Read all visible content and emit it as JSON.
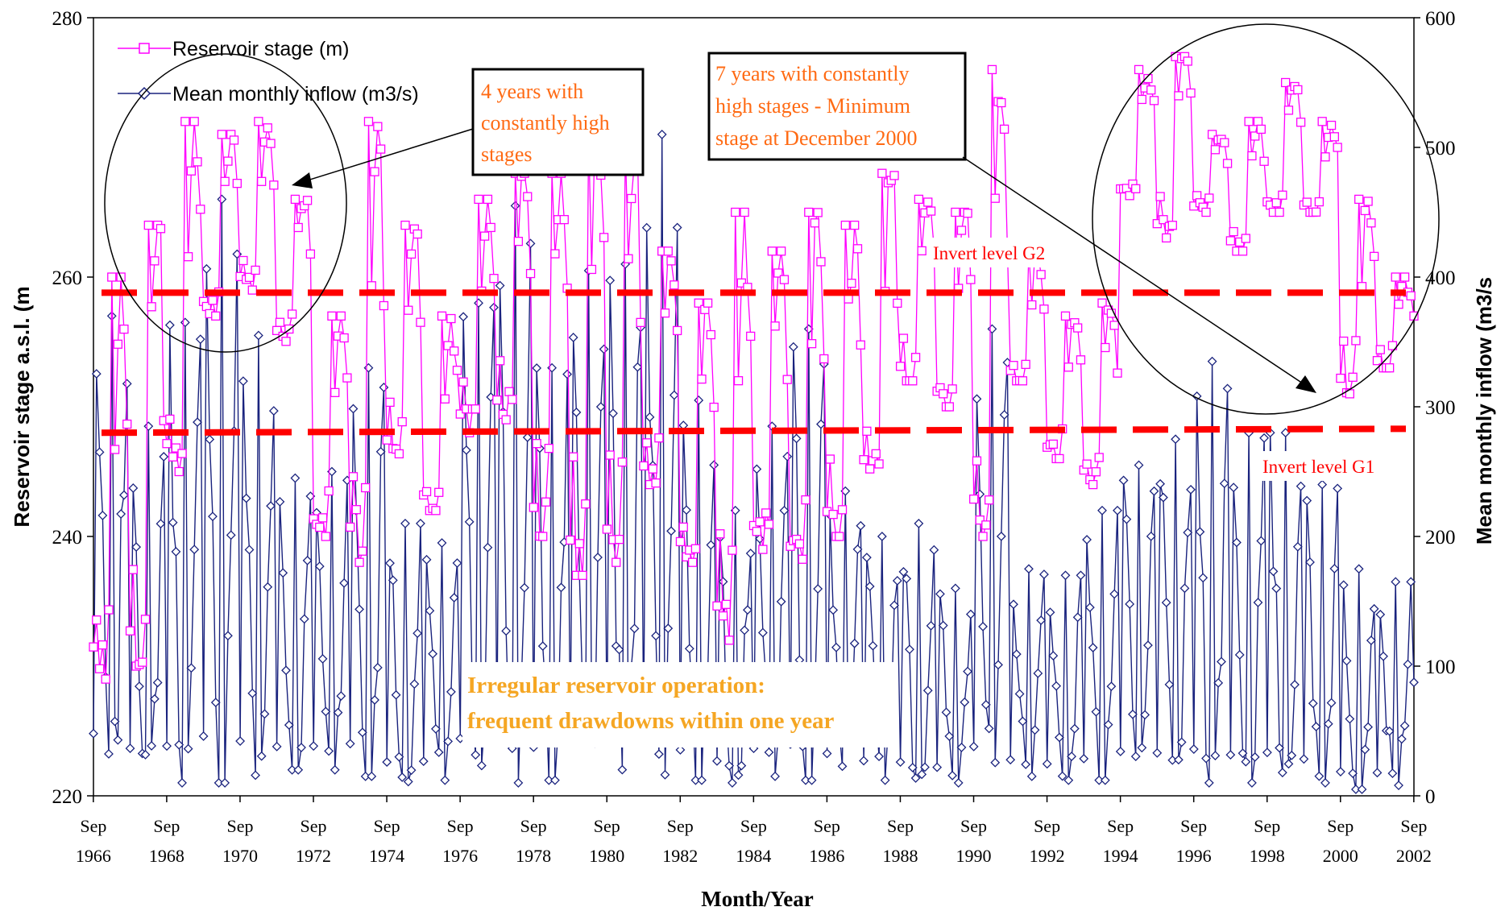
{
  "chart_data": {
    "type": "line",
    "title": "",
    "xlabel": "Month/Year",
    "ylabel_left": "Reservoir stage a.s.l. (m",
    "ylabel_right": "Mean monthly inflow (m3/s",
    "y_left_range": [
      220,
      280
    ],
    "y_left_ticks": [
      "220",
      "240",
      "260",
      "280"
    ],
    "y_right_range": [
      0,
      600
    ],
    "y_right_ticks": [
      "0",
      "100",
      "200",
      "300",
      "400",
      "500",
      "600"
    ],
    "x_range": [
      1966.67,
      2002.67
    ],
    "x_ticks": [
      {
        "month": "Sep",
        "year": "1966"
      },
      {
        "month": "Sep",
        "year": "1968"
      },
      {
        "month": "Sep",
        "year": "1970"
      },
      {
        "month": "Sep",
        "year": "1972"
      },
      {
        "month": "Sep",
        "year": "1974"
      },
      {
        "month": "Sep",
        "year": "1976"
      },
      {
        "month": "Sep",
        "year": "1978"
      },
      {
        "month": "Sep",
        "year": "1980"
      },
      {
        "month": "Sep",
        "year": "1982"
      },
      {
        "month": "Sep",
        "year": "1984"
      },
      {
        "month": "Sep",
        "year": "1986"
      },
      {
        "month": "Sep",
        "year": "1988"
      },
      {
        "month": "Sep",
        "year": "1990"
      },
      {
        "month": "Sep",
        "year": "1992"
      },
      {
        "month": "Sep",
        "year": "1994"
      },
      {
        "month": "Sep",
        "year": "1996"
      },
      {
        "month": "Sep",
        "year": "1998"
      },
      {
        "month": "Sep",
        "year": "2000"
      },
      {
        "month": "Sep",
        "year": "2002"
      }
    ],
    "grid": false,
    "legend_position": "top-left",
    "series": [
      {
        "name": "Reservoir stage (m)",
        "axis": "left",
        "color": "#ff00ff",
        "marker": "open-square",
        "x": [
          1966.67,
          1967.67,
          1968.67,
          1969.67,
          1970.67,
          1971.67,
          1972.67,
          1973.67,
          1974.67,
          1975.67,
          1976.67,
          1977.67,
          1978.67,
          1979.67,
          1980.67,
          1981.67,
          1982.67,
          1983.67,
          1984.67,
          1985.67,
          1986.67,
          1987.67,
          1988.67,
          1989.67,
          1990.67,
          1991.67,
          1992.67,
          1993.67,
          1994.67,
          1995.67,
          1996.67,
          1997.67,
          1998.67,
          1999.67,
          2000.67,
          2001.67,
          2002.67
        ],
        "min": [
          229,
          230,
          245,
          257,
          259,
          255,
          240,
          238,
          246,
          242,
          248,
          249,
          240,
          237,
          238,
          244,
          238,
          232,
          239,
          237,
          240,
          244,
          252,
          250,
          240,
          252,
          246,
          244,
          266,
          263,
          265,
          262,
          265,
          265,
          251,
          253,
          254
        ],
        "max": [
          260,
          264,
          272,
          271,
          272,
          266,
          257,
          272,
          264,
          257,
          266,
          268,
          268,
          271,
          270,
          262,
          258,
          265,
          262,
          265,
          264,
          268,
          266,
          265,
          276,
          262,
          257,
          258,
          276,
          277,
          271,
          272,
          275,
          272,
          266,
          260,
          260
        ]
      },
      {
        "name": "Mean monthly inflow (m3/s)",
        "axis": "right",
        "color": "#1a237e",
        "marker": "open-diamond",
        "x": [
          1966.67,
          1967.67,
          1968.67,
          1969.67,
          1970.67,
          1971.67,
          1972.67,
          1973.67,
          1974.67,
          1975.67,
          1976.67,
          1977.67,
          1978.67,
          1979.67,
          1980.67,
          1981.67,
          1982.67,
          1983.67,
          1984.67,
          1985.67,
          1986.67,
          1987.67,
          1988.67,
          1989.67,
          1990.67,
          1991.67,
          1992.67,
          1993.67,
          1994.67,
          1995.67,
          1996.67,
          1997.67,
          1998.67,
          1999.67,
          2000.67,
          2001.67,
          2002.67
        ],
        "min": [
          20,
          15,
          10,
          10,
          15,
          20,
          20,
          15,
          10,
          12,
          15,
          10,
          12,
          15,
          10,
          10,
          12,
          10,
          15,
          12,
          15,
          12,
          10,
          10,
          10,
          15,
          12,
          12,
          15,
          12,
          10,
          10,
          12,
          10,
          5,
          5,
          10
        ],
        "max": [
          370,
          285,
          365,
          460,
          355,
          245,
          250,
          330,
          210,
          195,
          380,
          455,
          330,
          405,
          410,
          510,
          305,
          220,
          285,
          360,
          235,
          200,
          210,
          160,
          360,
          175,
          170,
          220,
          255,
          275,
          335,
          280,
          280,
          240,
          175,
          165,
          165
        ]
      }
    ],
    "reference_lines": [
      {
        "label": "Invert level G2",
        "axis": "left",
        "value": 258.8,
        "color": "#ff0000",
        "style": "dashed"
      },
      {
        "label": "Invert level G1",
        "axis": "left",
        "value_start": 248.0,
        "value_end": 248.3,
        "color": "#ff0000",
        "style": "dashed"
      }
    ],
    "annotations": [
      "4 years with constantly high stages",
      "7 years with constantly high stages - Minimum stage at December 2000",
      "Irregular reservoir operation: frequent drawdowns within one year"
    ]
  },
  "legend": {
    "stage_label": "Reservoir stage (m)",
    "inflow_label": "Mean monthly inflow (m3/s)"
  },
  "annotations": {
    "box1_lines": [
      "4 years with",
      "constantly high",
      "stages"
    ],
    "box2_lines": [
      "7 years with constantly",
      "high stages - Minimum",
      "stage at December 2000"
    ],
    "g2_label": "Invert level G2",
    "g1_label": "Invert level G1",
    "irregular_lines": [
      "Irregular reservoir operation:",
      "frequent drawdowns within one year"
    ]
  },
  "colors": {
    "stage": "#ff00ff",
    "inflow": "#1a237e",
    "invert": "#ff0000",
    "annotation_orange": "#ff6a13",
    "annotation_yellow": "#f5a623"
  }
}
